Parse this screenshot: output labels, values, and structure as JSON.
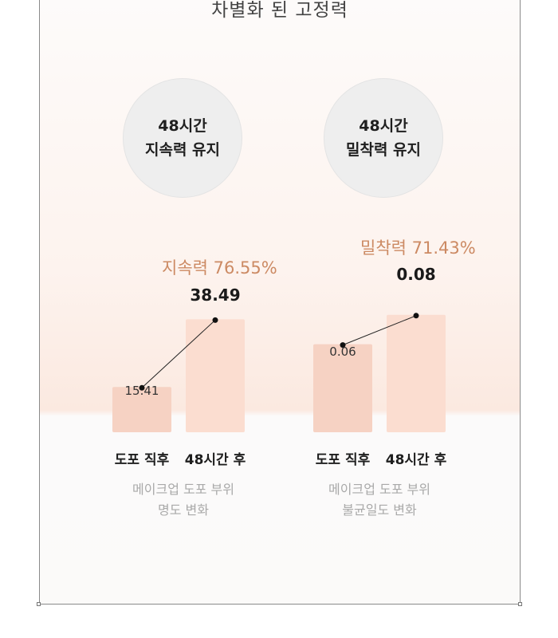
{
  "headline": "차별화 된 고정력",
  "colors": {
    "bar_before": "#f6d2c3",
    "bar_after": "#fbddd0",
    "accent_text": "#cc8a63",
    "badge_bg": "#eeeeee"
  },
  "panels": [
    {
      "badge_line1": "48시간",
      "badge_line2": "지속력 유지",
      "percent_label": "지속력 76.55%",
      "caption_line1": "메이크업 도포 부위",
      "caption_line2": "명도 변화"
    },
    {
      "badge_line1": "48시간",
      "badge_line2": "밀착력 유지",
      "percent_label": "밀착력 71.43%",
      "caption_line1": "메이크업 도포 부위",
      "caption_line2": "불균일도 변화"
    }
  ],
  "chart_data": [
    {
      "type": "bar",
      "categories": [
        "도포 직후",
        "48시간 후"
      ],
      "values": [
        15.41,
        38.49
      ],
      "value_labels": [
        "15.41",
        "38.49"
      ],
      "ylim": [
        0,
        50
      ]
    },
    {
      "type": "bar",
      "categories": [
        "도포 직후",
        "48시간 후"
      ],
      "values": [
        0.06,
        0.08
      ],
      "value_labels": [
        "0.06",
        "0.08"
      ],
      "ylim": [
        0,
        0.1
      ]
    }
  ]
}
